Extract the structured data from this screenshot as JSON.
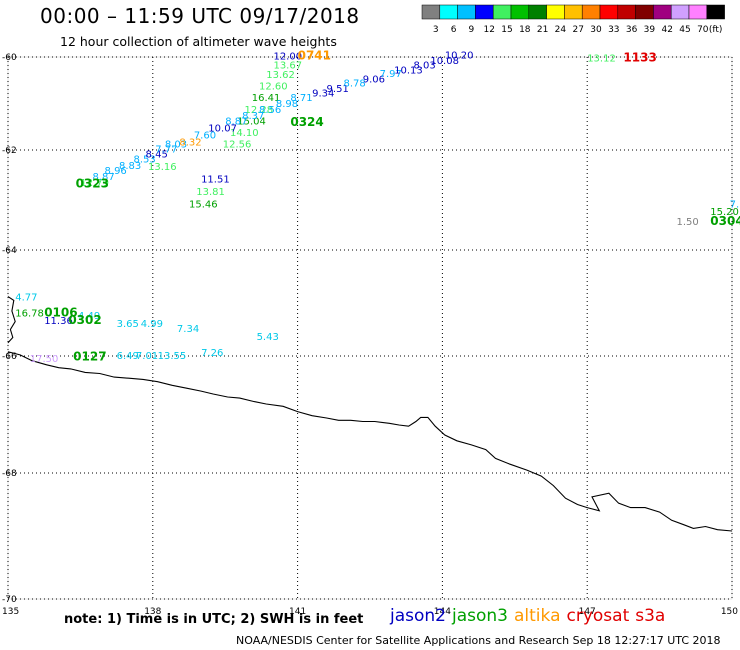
{
  "header": {
    "title": "00:00 – 11:59 UTC 09/17/2018",
    "subtitle": "12 hour collection of altimeter wave heights"
  },
  "legend": {
    "unit": "(ft)",
    "bins": [
      {
        "label": "3",
        "color": "#808080"
      },
      {
        "label": "6",
        "color": "#00ffff"
      },
      {
        "label": "9",
        "color": "#00c0ff"
      },
      {
        "label": "12",
        "color": "#0000ff"
      },
      {
        "label": "15",
        "color": "#40f060"
      },
      {
        "label": "18",
        "color": "#00c000"
      },
      {
        "label": "21",
        "color": "#008000"
      },
      {
        "label": "24",
        "color": "#ffff00"
      },
      {
        "label": "27",
        "color": "#ffc000"
      },
      {
        "label": "30",
        "color": "#ff8000"
      },
      {
        "label": "33",
        "color": "#ff0000"
      },
      {
        "label": "36",
        "color": "#c00000"
      },
      {
        "label": "39",
        "color": "#800000"
      },
      {
        "label": "42",
        "color": "#a00080"
      },
      {
        "label": "45",
        "color": "#d0a0ff"
      },
      {
        "label": "70",
        "color": "#ff80ff"
      },
      {
        "label": "",
        "color": "#000000"
      }
    ]
  },
  "axes": {
    "lon_ticks": [
      "135",
      "138",
      "141",
      "144",
      "147",
      "150"
    ],
    "lat_ticks": [
      "-60",
      "-62",
      "-64",
      "-66",
      "-68",
      "-70"
    ]
  },
  "footer": {
    "note": "note: 1) Time is in UTC; 2) SWH is in feet",
    "satellites": [
      {
        "name": "jason2",
        "color": "#0000c0"
      },
      {
        "name": "jason3",
        "color": "#00a000"
      },
      {
        "name": "altika",
        "color": "#ff9900"
      },
      {
        "name": "cryosat",
        "color": "#e00000"
      },
      {
        "name": "s3a",
        "color": "#e00000"
      }
    ],
    "credits": "NOAA/NESDIS Center for Satellite Applications and Research   Sep 18 12:27:17 UTC 2018"
  },
  "readings": [
    {
      "text": "12.00",
      "lon": 140.5,
      "lat": -60.05,
      "color": "#0000c0"
    },
    {
      "text": "13.67",
      "lon": 140.5,
      "lat": -60.25,
      "color": "#40f060"
    },
    {
      "text": "13.62",
      "lon": 140.35,
      "lat": -60.45,
      "color": "#40f060"
    },
    {
      "text": "12.60",
      "lon": 140.2,
      "lat": -60.7,
      "color": "#40f060"
    },
    {
      "text": "16.41",
      "lon": 140.05,
      "lat": -60.95,
      "color": "#00a000"
    },
    {
      "text": "12.28",
      "lon": 139.9,
      "lat": -61.2,
      "color": "#40f060"
    },
    {
      "text": "15.04",
      "lon": 139.75,
      "lat": -61.45,
      "color": "#00a000"
    },
    {
      "text": "14.10",
      "lon": 139.6,
      "lat": -61.7,
      "color": "#40f060"
    },
    {
      "text": "12.56",
      "lon": 139.45,
      "lat": -61.95,
      "color": "#40f060"
    },
    {
      "text": "11.51",
      "lon": 139.0,
      "lat": -62.65,
      "color": "#0000c0"
    },
    {
      "text": "13.81",
      "lon": 138.9,
      "lat": -62.9,
      "color": "#40f060"
    },
    {
      "text": "15.46",
      "lon": 138.75,
      "lat": -63.15,
      "color": "#00a000"
    },
    {
      "text": "12.79",
      "lon": 136.5,
      "lat": -62.72,
      "color": "#40f060"
    },
    {
      "text": "8.87",
      "lon": 136.75,
      "lat": -62.6,
      "color": "#00b0ff"
    },
    {
      "text": "8.96",
      "lon": 137.0,
      "lat": -62.48,
      "color": "#00b0ff"
    },
    {
      "text": "8.83",
      "lon": 137.3,
      "lat": -62.38,
      "color": "#00b0ff"
    },
    {
      "text": "8.53",
      "lon": 137.6,
      "lat": -62.25,
      "color": "#00b0ff"
    },
    {
      "text": "13.16",
      "lon": 137.9,
      "lat": -62.4,
      "color": "#40f060"
    },
    {
      "text": "8.45",
      "lon": 137.85,
      "lat": -62.15,
      "color": "#0000c0"
    },
    {
      "text": "7.77",
      "lon": 138.05,
      "lat": -62.05,
      "color": "#00b0ff"
    },
    {
      "text": "8.03",
      "lon": 138.25,
      "lat": -61.95,
      "color": "#00b0ff"
    },
    {
      "text": "8.32",
      "lon": 138.55,
      "lat": -61.9,
      "color": "#ff9900"
    },
    {
      "text": "7.60",
      "lon": 138.85,
      "lat": -61.75,
      "color": "#00b0ff"
    },
    {
      "text": "10.07",
      "lon": 139.15,
      "lat": -61.6,
      "color": "#0000c0"
    },
    {
      "text": "8.87",
      "lon": 139.5,
      "lat": -61.45,
      "color": "#00b0ff"
    },
    {
      "text": "8.37",
      "lon": 139.85,
      "lat": -61.33,
      "color": "#00b0ff"
    },
    {
      "text": "8.56",
      "lon": 140.2,
      "lat": -61.2,
      "color": "#00b0ff"
    },
    {
      "text": "8.98",
      "lon": 140.55,
      "lat": -61.08,
      "color": "#00b0ff"
    },
    {
      "text": "8.71",
      "lon": 140.85,
      "lat": -60.95,
      "color": "#00b0ff"
    },
    {
      "text": "9.34",
      "lon": 141.3,
      "lat": -60.85,
      "color": "#0000c0"
    },
    {
      "text": "9.51",
      "lon": 141.6,
      "lat": -60.75,
      "color": "#0000c0"
    },
    {
      "text": "8.78",
      "lon": 141.95,
      "lat": -60.63,
      "color": "#00b0ff"
    },
    {
      "text": "9.06",
      "lon": 142.35,
      "lat": -60.55,
      "color": "#0000c0"
    },
    {
      "text": "7.97",
      "lon": 142.7,
      "lat": -60.43,
      "color": "#00b0ff"
    },
    {
      "text": "10.13",
      "lon": 143.0,
      "lat": -60.35,
      "color": "#0000c0"
    },
    {
      "text": "8.03",
      "lon": 143.4,
      "lat": -60.25,
      "color": "#0000c0"
    },
    {
      "text": "10.08",
      "lon": 143.75,
      "lat": -60.15,
      "color": "#0000c0"
    },
    {
      "text": "10.20",
      "lon": 144.05,
      "lat": -60.03,
      "color": "#0000c0"
    },
    {
      "text": "13.12",
      "lon": 147.0,
      "lat": -60.1,
      "color": "#40f060"
    },
    {
      "text": "1.50",
      "lon": 148.85,
      "lat": -63.5,
      "color": "#808080"
    },
    {
      "text": "15.20",
      "lon": 149.55,
      "lat": -63.3,
      "color": "#00a000"
    },
    {
      "text": "7.",
      "lon": 149.95,
      "lat": -63.15,
      "color": "#00b0ff"
    },
    {
      "text": "4.77",
      "lon": 135.15,
      "lat": -64.95,
      "color": "#00c8e8"
    },
    {
      "text": "16.78",
      "lon": 135.15,
      "lat": -65.25,
      "color": "#00a000"
    },
    {
      "text": "11.36",
      "lon": 135.75,
      "lat": -65.4,
      "color": "#0000c0"
    },
    {
      "text": "4.49",
      "lon": 136.45,
      "lat": -65.3,
      "color": "#00c8e8"
    },
    {
      "text": "3.65",
      "lon": 137.25,
      "lat": -65.45,
      "color": "#00c8e8"
    },
    {
      "text": "4.99",
      "lon": 137.75,
      "lat": -65.45,
      "color": "#00c8e8"
    },
    {
      "text": "7.34",
      "lon": 138.5,
      "lat": -65.55,
      "color": "#00c8e8"
    },
    {
      "text": "5.43",
      "lon": 140.15,
      "lat": -65.7,
      "color": "#00c8e8"
    },
    {
      "text": "7.26",
      "lon": 139.0,
      "lat": -66.0,
      "color": "#00c8e8"
    },
    {
      "text": "13.55",
      "lon": 138.1,
      "lat": -66.05,
      "color": "#00c8e8"
    },
    {
      "text": "7.01",
      "lon": 137.65,
      "lat": -66.05,
      "color": "#00c8e8"
    },
    {
      "text": "6.49",
      "lon": 137.25,
      "lat": -66.05,
      "color": "#00c8e8"
    },
    {
      "text": "17.50",
      "lon": 135.45,
      "lat": -66.1,
      "color": "#d0a0ff"
    }
  ],
  "times": [
    {
      "text": "0741",
      "lon": 141.0,
      "lat": -60.05,
      "color": "#ff9900"
    },
    {
      "text": "1133",
      "lon": 147.75,
      "lat": -60.1,
      "color": "#e00000"
    },
    {
      "text": "0324",
      "lon": 140.85,
      "lat": -61.48,
      "color": "#00a000"
    },
    {
      "text": "0323",
      "lon": 136.4,
      "lat": -62.75,
      "color": "#00a000"
    },
    {
      "text": "0304",
      "lon": 149.55,
      "lat": -63.5,
      "color": "#00a000"
    },
    {
      "text": "0106",
      "lon": 135.75,
      "lat": -65.25,
      "color": "#00a000"
    },
    {
      "text": "0302",
      "lon": 136.25,
      "lat": -65.4,
      "color": "#00a000"
    },
    {
      "text": "0127",
      "lon": 136.35,
      "lat": -66.08,
      "color": "#00a000"
    }
  ],
  "coastline": [
    [
      135.0,
      -65.92
    ],
    [
      135.25,
      -65.98
    ],
    [
      135.5,
      -66.08
    ],
    [
      135.8,
      -66.15
    ],
    [
      136.05,
      -66.2
    ],
    [
      136.3,
      -66.22
    ],
    [
      136.6,
      -66.28
    ],
    [
      136.9,
      -66.3
    ],
    [
      137.2,
      -66.36
    ],
    [
      137.5,
      -66.38
    ],
    [
      137.8,
      -66.4
    ],
    [
      138.1,
      -66.44
    ],
    [
      138.4,
      -66.5
    ],
    [
      138.7,
      -66.55
    ],
    [
      139.0,
      -66.6
    ],
    [
      139.25,
      -66.65
    ],
    [
      139.55,
      -66.7
    ],
    [
      139.8,
      -66.72
    ],
    [
      140.1,
      -66.78
    ],
    [
      140.35,
      -66.82
    ],
    [
      140.7,
      -66.86
    ],
    [
      141.0,
      -66.95
    ],
    [
      141.3,
      -67.02
    ],
    [
      141.6,
      -67.06
    ],
    [
      141.85,
      -67.1
    ],
    [
      142.1,
      -67.1
    ],
    [
      142.35,
      -67.12
    ],
    [
      142.6,
      -67.12
    ],
    [
      142.9,
      -67.15
    ],
    [
      143.1,
      -67.18
    ],
    [
      143.3,
      -67.2
    ],
    [
      143.45,
      -67.12
    ],
    [
      143.55,
      -67.05
    ],
    [
      143.7,
      -67.05
    ],
    [
      143.85,
      -67.2
    ],
    [
      144.05,
      -67.35
    ],
    [
      144.3,
      -67.45
    ],
    [
      144.6,
      -67.52
    ],
    [
      144.9,
      -67.6
    ],
    [
      145.1,
      -67.75
    ],
    [
      145.4,
      -67.85
    ],
    [
      145.75,
      -67.95
    ],
    [
      146.05,
      -68.05
    ],
    [
      146.3,
      -68.2
    ],
    [
      146.55,
      -68.4
    ],
    [
      146.8,
      -68.5
    ],
    [
      147.0,
      -68.55
    ],
    [
      147.25,
      -68.6
    ],
    [
      147.1,
      -68.38
    ],
    [
      147.45,
      -68.32
    ],
    [
      147.65,
      -68.48
    ],
    [
      147.9,
      -68.55
    ],
    [
      148.2,
      -68.55
    ],
    [
      148.5,
      -68.62
    ],
    [
      148.75,
      -68.75
    ],
    [
      149.0,
      -68.82
    ],
    [
      149.2,
      -68.88
    ],
    [
      149.45,
      -68.85
    ],
    [
      149.7,
      -68.9
    ],
    [
      150.0,
      -68.92
    ]
  ],
  "west_coast": [
    [
      135.0,
      -64.88
    ],
    [
      135.12,
      -64.95
    ],
    [
      135.08,
      -65.15
    ],
    [
      135.15,
      -65.35
    ],
    [
      135.05,
      -65.5
    ],
    [
      135.1,
      -65.65
    ],
    [
      135.0,
      -65.75
    ]
  ]
}
